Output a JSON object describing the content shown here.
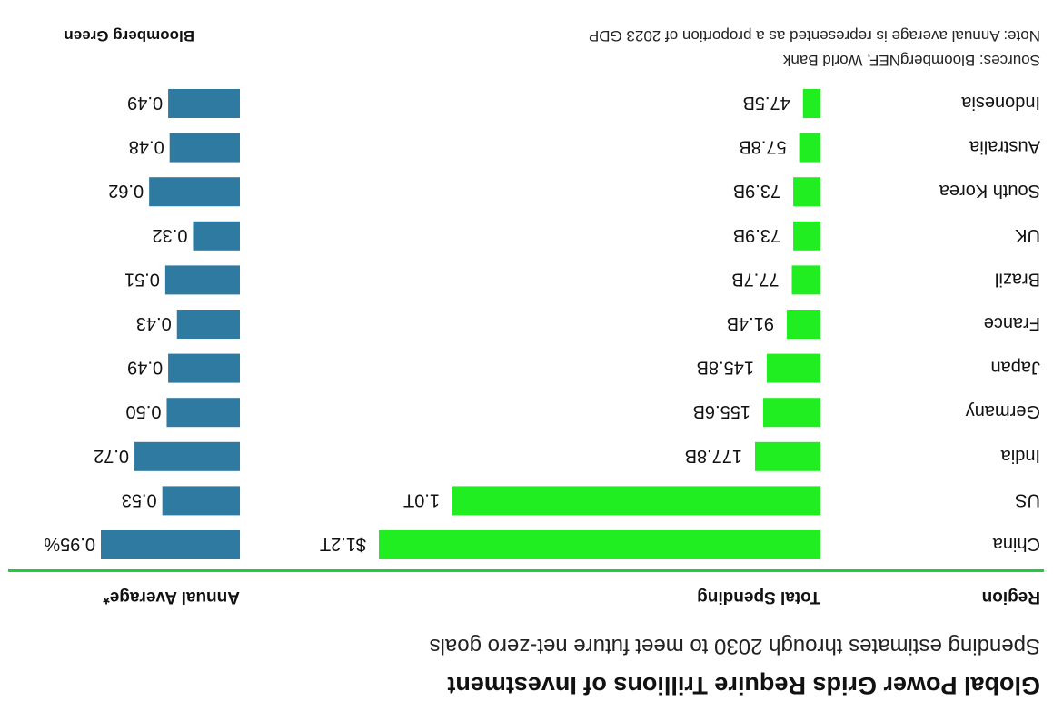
{
  "colors": {
    "green": "#21ee21",
    "blue": "#2e7aa0",
    "rule": "#21cc3a"
  },
  "chart_data": {
    "type": "bar",
    "title": "Global Power Grids Require Trillions of Investment",
    "subtitle": "Spending estimates through 2030 to meet future net-zero goals",
    "column_headers": [
      "Region",
      "Total Spending",
      "Annual Average*"
    ],
    "categories": [
      "China",
      "US",
      "India",
      "Germany",
      "Japan",
      "France",
      "Brazil",
      "UK",
      "South Korea",
      "Australia",
      "Indonesia"
    ],
    "series": [
      {
        "name": "Total Spending",
        "unit": "USD billions",
        "values": [
          1200,
          1000,
          177.8,
          155.6,
          145.8,
          91.4,
          77.7,
          73.9,
          73.9,
          57.8,
          47.5
        ],
        "labels": [
          "$1.2T",
          "1.0T",
          "177.8B",
          "155.6B",
          "145.8B",
          "91.4B",
          "77.7B",
          "73.9B",
          "73.9B",
          "57.8B",
          "47.5B"
        ]
      },
      {
        "name": "Annual Average*",
        "unit": "% of 2023 GDP",
        "values": [
          0.95,
          0.53,
          0.72,
          0.5,
          0.49,
          0.43,
          0.51,
          0.32,
          0.62,
          0.48,
          0.49
        ],
        "labels": [
          "0.95%",
          "0.53",
          "0.72",
          "0.50",
          "0.49",
          "0.43",
          "0.51",
          "0.32",
          "0.62",
          "0.48",
          "0.49"
        ]
      }
    ],
    "sources": "Sources: BloombergNEF, World Bank",
    "note": "Note: Annual average is represented as a proportion of 2023 GDP",
    "credit": "Bloomberg Green"
  }
}
